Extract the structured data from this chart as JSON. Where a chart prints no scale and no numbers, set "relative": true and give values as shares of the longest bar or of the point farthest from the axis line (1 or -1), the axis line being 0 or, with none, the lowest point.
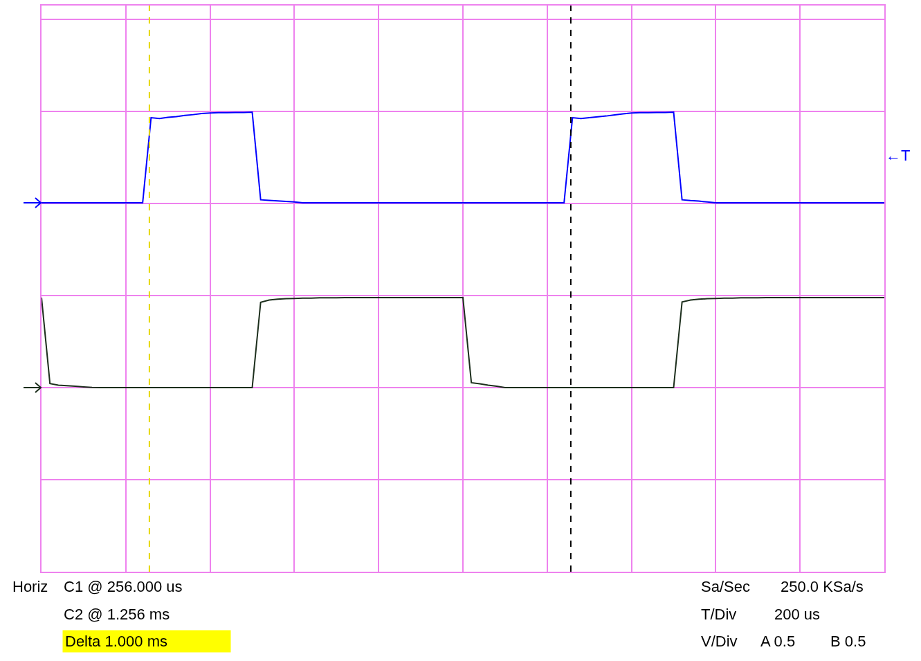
{
  "chart_data": {
    "type": "line",
    "relative": true,
    "grid": true,
    "marker": "none",
    "line_style": "solid",
    "categories": [
      null,
      null,
      null,
      null,
      null,
      null,
      null,
      null,
      null,
      null,
      null,
      null,
      null,
      null,
      null,
      null,
      null,
      null,
      null,
      null,
      null,
      null,
      null,
      null,
      null,
      null,
      null,
      null,
      null,
      null,
      null,
      null,
      null,
      null,
      null,
      null,
      null,
      null,
      null,
      null,
      null,
      null,
      null,
      null,
      null,
      null,
      null,
      null,
      null,
      null,
      null,
      null,
      null,
      null,
      null,
      null,
      null,
      null,
      null,
      null,
      null,
      null,
      null,
      null,
      null,
      null,
      null,
      null,
      null,
      null,
      null,
      null,
      null,
      null,
      null,
      null,
      null,
      null,
      null,
      null,
      null,
      null,
      null,
      null,
      null,
      null,
      null,
      null,
      null,
      null,
      null,
      null,
      null,
      null,
      null,
      null,
      null,
      null,
      null,
      null,
      null
    ],
    "series": [
      {
        "color": "#0000ff",
        "values": [
          0.671,
          0.671,
          0.671,
          0.671,
          0.671,
          0.671,
          0.671,
          0.671,
          0.671,
          0.671,
          0.671,
          0.671,
          0.671,
          0.98,
          0.977,
          0.981,
          0.984,
          0.988,
          0.991,
          0.995,
          0.997,
          0.998,
          0.998,
          0.999,
          0.999,
          1,
          0.682,
          0.68,
          0.678,
          0.676,
          0.674,
          0.671,
          0.671,
          0.671,
          0.671,
          0.671,
          0.671,
          0.671,
          0.671,
          0.671,
          0.671,
          0.671,
          0.671,
          0.671,
          0.671,
          0.671,
          0.671,
          0.671,
          0.671,
          0.671,
          0.671,
          0.671,
          0.671,
          0.671,
          0.671,
          0.671,
          0.671,
          0.671,
          0.671,
          0.671,
          0.671,
          0.671,
          0.671,
          0.98,
          0.977,
          0.98,
          0.983,
          0.986,
          0.99,
          0.994,
          0.997,
          0.998,
          0.998,
          0.999,
          0.999,
          1,
          0.682,
          0.679,
          0.677,
          0.674,
          0.671,
          0.671,
          0.671,
          0.671,
          0.671,
          0.671,
          0.671,
          0.671,
          0.671,
          0.671,
          0.671,
          0.671,
          0.671,
          0.671,
          0.671,
          0.671,
          0.671,
          0.671,
          0.671,
          0.671,
          0.671
        ]
      },
      {
        "color": "#1c2e1c",
        "values": [
          0.327,
          0.015,
          0.009,
          0.007,
          0.005,
          0.003,
          0.001,
          0,
          0,
          0,
          0,
          0,
          0,
          0,
          0,
          0,
          0,
          0,
          0,
          0,
          0,
          0,
          0,
          0,
          0,
          0,
          0.31,
          0.318,
          0.321,
          0.323,
          0.324,
          0.325,
          0.325,
          0.326,
          0.326,
          0.326,
          0.327,
          0.327,
          0.327,
          0.327,
          0.327,
          0.327,
          0.327,
          0.327,
          0.327,
          0.327,
          0.327,
          0.327,
          0.327,
          0.327,
          0.327,
          0.018,
          0.014,
          0.009,
          0.005,
          0,
          0,
          0,
          0,
          0,
          0,
          0,
          0,
          0,
          0,
          0,
          0,
          0,
          0,
          0,
          0,
          0,
          0,
          0,
          0,
          0,
          0.311,
          0.318,
          0.321,
          0.323,
          0.324,
          0.325,
          0.325,
          0.326,
          0.326,
          0.326,
          0.327,
          0.327,
          0.327,
          0.327,
          0.327,
          0.327,
          0.327,
          0.327,
          0.327,
          0.327,
          0.327,
          0.327,
          0.327,
          0.327,
          0.327
        ]
      }
    ],
    "annotations": [
      "Horiz",
      "C1 @ 256.000 us",
      "C2 @ 1.256 ms",
      "Delta 1.000 ms",
      "Sa/Sec",
      "250.0 KSa/s",
      "T/Div",
      "200 us",
      "V/Div",
      "A 0.5",
      "B 0.5",
      "←T"
    ]
  }
}
